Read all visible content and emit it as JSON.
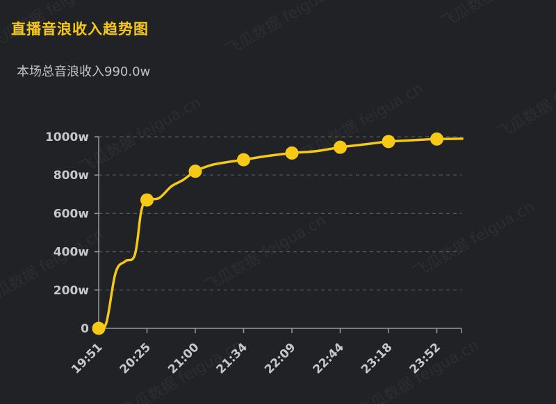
{
  "header": {
    "title": "直播音浪收入趋势图",
    "subtitle": "本场总音浪收入990.0w"
  },
  "watermark": {
    "text": "飞瓜数据 feigua.cn"
  },
  "colors": {
    "line": "#f5c916",
    "title": "#f5c916",
    "grid": "#55565c",
    "axis": "#9a9a9e",
    "background": "#212226"
  },
  "chart_data": {
    "type": "line",
    "title": "直播音浪收入趋势图",
    "subtitle": "本场总音浪收入990.0w",
    "xlabel": "",
    "ylabel": "",
    "ylim": [
      0,
      1000
    ],
    "y_ticks": [
      {
        "value": 0,
        "label": "0"
      },
      {
        "value": 200,
        "label": "200w"
      },
      {
        "value": 400,
        "label": "400w"
      },
      {
        "value": 600,
        "label": "600w"
      },
      {
        "value": 800,
        "label": "800w"
      },
      {
        "value": 1000,
        "label": "1000w"
      }
    ],
    "x_ticks": [
      "19:51",
      "20:25",
      "21:00",
      "21:34",
      "22:09",
      "22:44",
      "23:18",
      "23:52"
    ],
    "x_range": [
      0,
      7.55
    ],
    "grid": "horizontal-dashed",
    "legend": "none",
    "series": [
      {
        "points": [
          {
            "t": 0,
            "v": 0
          },
          {
            "t": 0.16,
            "v": 30
          },
          {
            "t": 0.35,
            "v": 290
          },
          {
            "t": 0.55,
            "v": 350
          },
          {
            "t": 0.75,
            "v": 385
          },
          {
            "t": 0.88,
            "v": 610
          },
          {
            "t": 1.0,
            "v": 670
          },
          {
            "t": 1.25,
            "v": 680
          },
          {
            "t": 1.5,
            "v": 740
          },
          {
            "t": 1.75,
            "v": 775
          },
          {
            "t": 2.0,
            "v": 820
          },
          {
            "t": 2.3,
            "v": 850
          },
          {
            "t": 2.6,
            "v": 865
          },
          {
            "t": 3.0,
            "v": 880
          },
          {
            "t": 3.5,
            "v": 900
          },
          {
            "t": 4.0,
            "v": 915
          },
          {
            "t": 4.5,
            "v": 925
          },
          {
            "t": 5.0,
            "v": 945
          },
          {
            "t": 5.5,
            "v": 960
          },
          {
            "t": 6.0,
            "v": 975
          },
          {
            "t": 6.5,
            "v": 982
          },
          {
            "t": 7.0,
            "v": 988
          },
          {
            "t": 7.55,
            "v": 990
          }
        ],
        "markers": [
          {
            "t": 0,
            "v": 0
          },
          {
            "t": 1.0,
            "v": 670
          },
          {
            "t": 2.0,
            "v": 820
          },
          {
            "t": 3.0,
            "v": 880
          },
          {
            "t": 4.0,
            "v": 915
          },
          {
            "t": 5.0,
            "v": 945
          },
          {
            "t": 6.0,
            "v": 975
          },
          {
            "t": 7.0,
            "v": 988
          }
        ]
      }
    ]
  }
}
